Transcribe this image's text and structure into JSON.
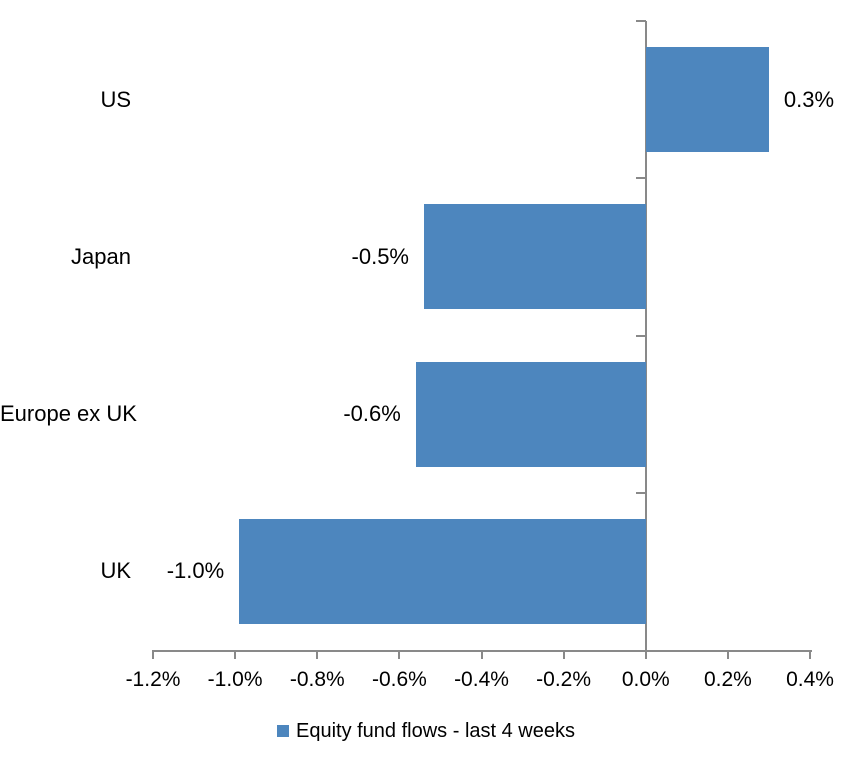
{
  "chart_data": {
    "type": "bar",
    "orientation": "horizontal",
    "categories": [
      "US",
      "Japan",
      "Europe ex UK",
      "UK"
    ],
    "series": [
      {
        "name": "Equity fund flows - last 4 weeks",
        "values": [
          0.3,
          -0.5,
          -0.6,
          -1.0
        ],
        "value_labels": [
          "0.3%",
          "-0.5%",
          "-0.6%",
          "-1.0%"
        ],
        "bar_extents_pct": [
          0.3,
          -0.54,
          -0.56,
          -0.99
        ],
        "color": "#4D86BE"
      }
    ],
    "x_axis": {
      "min": -1.2,
      "max": 0.4,
      "tick_step": 0.2,
      "tick_labels": [
        "-1.2%",
        "-1.0%",
        "-0.8%",
        "-0.6%",
        "-0.4%",
        "-0.2%",
        "0.0%",
        "0.2%",
        "0.4%"
      ],
      "format": "percent"
    },
    "grid": false,
    "legend_position": "bottom",
    "axis_color": "#898989",
    "text_color": "#000000",
    "background": "#ffffff"
  }
}
